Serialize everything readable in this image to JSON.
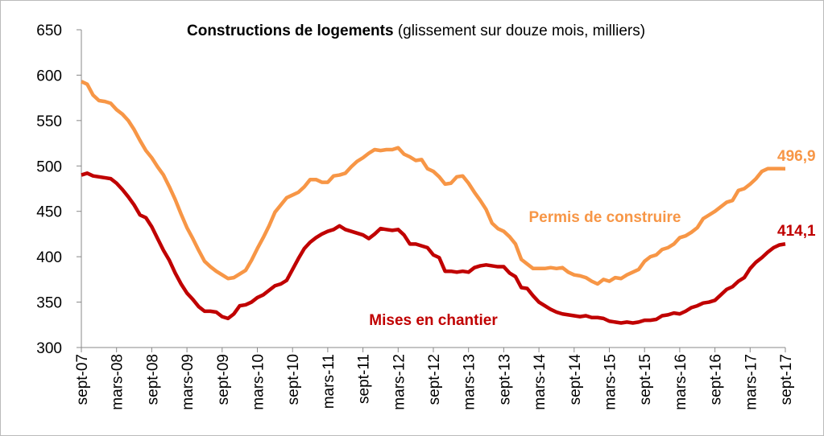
{
  "chart_data": {
    "type": "line",
    "title": "Constructions de logements",
    "subtitle": "(glissement sur douze mois, milliers)",
    "annotations": [
      "Permis de construire",
      "Mises en chantier"
    ],
    "categories": [
      "sept-07",
      null,
      null,
      null,
      null,
      null,
      "mars-08",
      null,
      null,
      null,
      null,
      null,
      "sept-08",
      null,
      null,
      null,
      null,
      null,
      "mars-09",
      null,
      null,
      null,
      null,
      null,
      "sept-09",
      null,
      null,
      null,
      null,
      null,
      "mars-10",
      null,
      null,
      null,
      null,
      null,
      "sept-10",
      null,
      null,
      null,
      null,
      null,
      "mars-11",
      null,
      null,
      null,
      null,
      null,
      "sept-11",
      null,
      null,
      null,
      null,
      null,
      "mars-12",
      null,
      null,
      null,
      null,
      null,
      "sept-12",
      null,
      null,
      null,
      null,
      null,
      "mars-13",
      null,
      null,
      null,
      null,
      null,
      "sept-13",
      null,
      null,
      null,
      null,
      null,
      "mars-14",
      null,
      null,
      null,
      null,
      null,
      "sept-14",
      null,
      null,
      null,
      null,
      null,
      "mars-15",
      null,
      null,
      null,
      null,
      null,
      "sept-15",
      null,
      null,
      null,
      null,
      null,
      "mars-16",
      null,
      null,
      null,
      null,
      null,
      "sept-16",
      null,
      null,
      null,
      null,
      null,
      "mars-17",
      null,
      null,
      null,
      null,
      null,
      "sept-17"
    ],
    "series": [
      {
        "name": "Permis de construire",
        "color": "#f79646",
        "values": [
          593,
          590,
          578,
          572,
          571,
          569,
          562,
          557,
          550,
          540,
          528,
          517,
          509,
          499,
          490,
          477,
          463,
          447,
          432,
          420,
          407,
          395,
          389,
          384,
          380,
          376,
          377,
          381,
          385,
          396,
          409,
          421,
          434,
          449,
          457,
          465,
          468,
          471,
          477,
          485,
          485,
          482,
          482,
          489,
          490,
          492,
          499,
          505,
          509,
          514,
          518,
          517,
          518,
          518,
          520,
          513,
          510,
          506,
          507,
          497,
          494,
          488,
          480,
          481,
          488,
          489,
          481,
          471,
          462,
          452,
          437,
          431,
          428,
          422,
          414,
          397,
          392,
          387,
          387,
          387,
          388,
          387,
          388,
          383,
          380,
          379,
          377,
          373,
          370,
          375,
          373,
          377,
          376,
          380,
          383,
          386,
          395,
          400,
          402,
          408,
          410,
          414,
          421,
          423,
          427,
          432,
          442,
          446,
          450,
          455,
          460,
          462,
          473,
          475,
          480,
          486,
          494,
          497,
          497,
          497,
          496.9
        ],
        "value_labels": [
          null,
          null,
          null,
          null,
          null,
          null,
          null,
          null,
          null,
          null,
          null,
          null,
          null,
          null,
          null,
          null,
          null,
          null,
          null,
          null,
          null,
          null,
          null,
          null,
          null,
          null,
          null,
          null,
          null,
          null,
          null,
          null,
          null,
          null,
          null,
          null,
          null,
          null,
          null,
          null,
          null,
          null,
          null,
          null,
          null,
          null,
          null,
          null,
          null,
          null,
          null,
          null,
          null,
          null,
          null,
          null,
          null,
          null,
          null,
          null,
          null,
          null,
          null,
          null,
          null,
          null,
          null,
          null,
          null,
          null,
          null,
          null,
          null,
          null,
          null,
          null,
          null,
          null,
          null,
          null,
          null,
          null,
          null,
          null,
          null,
          null,
          null,
          null,
          null,
          null,
          null,
          null,
          null,
          null,
          null,
          null,
          null,
          null,
          null,
          null,
          null,
          null,
          null,
          null,
          null,
          null,
          null,
          null,
          null,
          null,
          null,
          null,
          null,
          null,
          null,
          null,
          null,
          null,
          null,
          null,
          "496,9"
        ]
      },
      {
        "name": "Mises en chantier",
        "color": "#c00000",
        "values": [
          490,
          492,
          489,
          488,
          487,
          486,
          481,
          474,
          466,
          457,
          446,
          443,
          433,
          420,
          407,
          396,
          382,
          370,
          360,
          353,
          345,
          340,
          340,
          339,
          334,
          332,
          337,
          346,
          347,
          350,
          355,
          358,
          363,
          368,
          370,
          374,
          386,
          398,
          409,
          416,
          421,
          425,
          428,
          430,
          434,
          430,
          428,
          426,
          424,
          420,
          425,
          431,
          430,
          429,
          430,
          424,
          414,
          414,
          412,
          410,
          402,
          399,
          384,
          384,
          383,
          384,
          383,
          388,
          390,
          391,
          390,
          389,
          389,
          382,
          378,
          366,
          365,
          357,
          350,
          346,
          342,
          339,
          337,
          336,
          335,
          334,
          335,
          333,
          333,
          332,
          329,
          328,
          327,
          328,
          327,
          328,
          330,
          330,
          331,
          335,
          336,
          338,
          337,
          340,
          344,
          346,
          349,
          350,
          352,
          358,
          364,
          367,
          373,
          377,
          387,
          394,
          399,
          405,
          410,
          413,
          414.1
        ],
        "value_labels": [
          null,
          null,
          null,
          null,
          null,
          null,
          null,
          null,
          null,
          null,
          null,
          null,
          null,
          null,
          null,
          null,
          null,
          null,
          null,
          null,
          null,
          null,
          null,
          null,
          null,
          null,
          null,
          null,
          null,
          null,
          null,
          null,
          null,
          null,
          null,
          null,
          null,
          null,
          null,
          null,
          null,
          null,
          null,
          null,
          null,
          null,
          null,
          null,
          null,
          null,
          null,
          null,
          null,
          null,
          null,
          null,
          null,
          null,
          null,
          null,
          null,
          null,
          null,
          null,
          null,
          null,
          null,
          null,
          null,
          null,
          null,
          null,
          null,
          null,
          null,
          null,
          null,
          null,
          null,
          null,
          null,
          null,
          null,
          null,
          null,
          null,
          null,
          null,
          null,
          null,
          null,
          null,
          null,
          null,
          null,
          null,
          null,
          null,
          null,
          null,
          null,
          null,
          null,
          null,
          null,
          null,
          null,
          null,
          null,
          null,
          null,
          null,
          null,
          null,
          null,
          null,
          null,
          null,
          null,
          null,
          "414,1"
        ]
      }
    ],
    "ylim": [
      300,
      650
    ],
    "yticks": [
      300,
      350,
      400,
      450,
      500,
      550,
      600,
      650
    ],
    "grid": false
  }
}
